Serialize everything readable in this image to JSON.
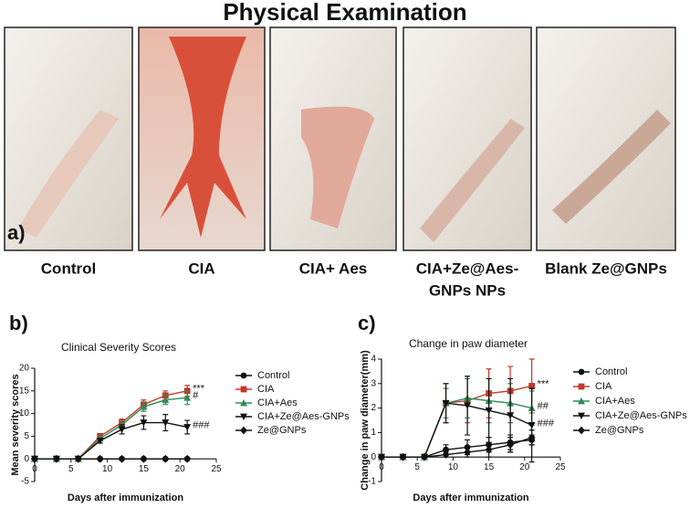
{
  "figure": {
    "title": "Physical Examination",
    "panel_label": "a)",
    "captions": [
      [
        "Control"
      ],
      [
        "CIA"
      ],
      [
        "CIA+ Aes"
      ],
      [
        "CIA+Ze@Aes-",
        "GNPs NPs"
      ],
      [
        "Blank Ze@GNPs"
      ]
    ]
  },
  "chart_data": [
    {
      "type": "line",
      "panel_label": "b)",
      "title": "Clinical Severity Scores",
      "xlabel": "Days after immunization",
      "ylabel": "Mean severity scores",
      "x": [
        0,
        3,
        6,
        9,
        12,
        15,
        18,
        21
      ],
      "xlim": [
        0,
        25
      ],
      "xticks": [
        0,
        5,
        10,
        15,
        20,
        25
      ],
      "ylim": [
        -5,
        20
      ],
      "yticks": [
        -5,
        0,
        5,
        10,
        15,
        20
      ],
      "series": [
        {
          "name": "Control",
          "color": "#111111",
          "marker": "circle",
          "values": [
            0,
            0,
            0,
            0,
            0,
            0,
            0,
            0
          ]
        },
        {
          "name": "CIA",
          "color": "#c0392b",
          "marker": "square",
          "values": [
            0,
            0,
            0,
            5,
            8,
            12,
            14,
            15
          ],
          "errors": [
            0,
            0,
            0,
            0.5,
            0.8,
            1,
            1,
            1.2
          ]
        },
        {
          "name": "CIA+Aes",
          "color": "#2e8b57",
          "marker": "triangle",
          "values": [
            0,
            0,
            0,
            4.5,
            7.5,
            11.5,
            13,
            13.5
          ],
          "errors": [
            0,
            0,
            0,
            0.5,
            0.8,
            1,
            1,
            1.5
          ]
        },
        {
          "name": "CIA+Ze@Aes-GNPs",
          "color": "#111111",
          "marker": "triangle-down",
          "values": [
            0,
            0,
            0,
            4,
            6.5,
            8,
            8,
            7
          ],
          "errors": [
            0,
            0,
            0,
            0.5,
            1,
            1.5,
            1.8,
            1.5
          ]
        },
        {
          "name": "Ze@GNPs",
          "color": "#111111",
          "marker": "diamond",
          "values": [
            0,
            0,
            0,
            0,
            0,
            0,
            0,
            0
          ]
        }
      ],
      "annotations": [
        "***",
        "#",
        "###"
      ]
    },
    {
      "type": "line",
      "panel_label": "c)",
      "title": "Change in paw diameter",
      "xlabel": "Days after immunization",
      "ylabel": "Change in paw diameter(mm)",
      "x": [
        0,
        3,
        6,
        9,
        12,
        15,
        18,
        21
      ],
      "xlim": [
        0,
        25
      ],
      "xticks": [
        0,
        5,
        10,
        15,
        20,
        25
      ],
      "ylim": [
        -1,
        4
      ],
      "yticks": [
        -1,
        0,
        1,
        2,
        3,
        4
      ],
      "series": [
        {
          "name": "Control",
          "color": "#111111",
          "marker": "circle",
          "values": [
            0,
            0,
            0,
            0.3,
            0.4,
            0.5,
            0.6,
            0.7
          ],
          "errors": [
            0,
            0,
            0,
            0.2,
            0.3,
            0.3,
            0.3,
            0.2
          ]
        },
        {
          "name": "CIA",
          "color": "#c0392b",
          "marker": "square",
          "values": [
            0,
            0,
            0,
            2.2,
            2.3,
            2.6,
            2.7,
            2.9
          ],
          "errors": [
            0,
            0,
            0,
            0.8,
            0.9,
            1,
            1,
            1.1
          ]
        },
        {
          "name": "CIA+Aes",
          "color": "#2e8b57",
          "marker": "triangle",
          "values": [
            0,
            0,
            0,
            2.2,
            2.4,
            2.3,
            2.2,
            2.0
          ],
          "errors": [
            0,
            0,
            0,
            0.6,
            0.8,
            0.9,
            0.8,
            0.7
          ]
        },
        {
          "name": "CIA+Ze@Aes-GNPs",
          "color": "#111111",
          "marker": "triangle-down",
          "values": [
            0,
            0,
            0,
            2.2,
            2.1,
            1.9,
            1.7,
            1.3
          ],
          "errors": [
            0,
            0,
            0,
            0.8,
            1.2,
            1.3,
            1.5,
            1.5
          ]
        },
        {
          "name": "Ze@GNPs",
          "color": "#111111",
          "marker": "diamond",
          "values": [
            0,
            0,
            0,
            0.1,
            0.2,
            0.3,
            0.5,
            0.8
          ],
          "errors": [
            0,
            0,
            0,
            0.1,
            0.2,
            0.3,
            0.3,
            0.3
          ]
        }
      ],
      "annotations": [
        "***",
        "##",
        "###"
      ]
    }
  ]
}
